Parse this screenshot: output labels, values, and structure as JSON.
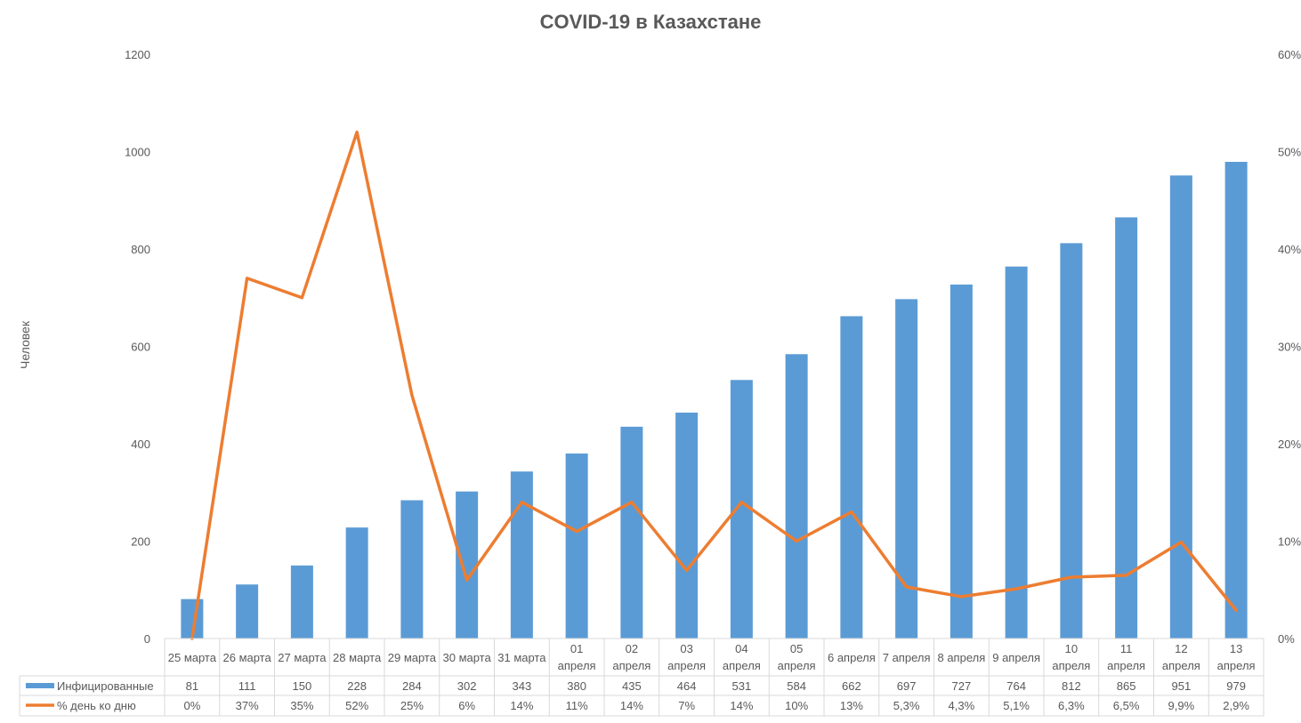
{
  "chart_data": {
    "type": "bar",
    "title": "COVID-19 в Казахстане",
    "ylabel": "Человек",
    "ylim": [
      0,
      1200
    ],
    "y2lim": [
      0,
      0.6
    ],
    "y_ticks": [
      "0",
      "200",
      "400",
      "600",
      "800",
      "1000",
      "1200"
    ],
    "y2_ticks": [
      "0%",
      "10%",
      "20%",
      "30%",
      "40%",
      "50%",
      "60%"
    ],
    "categories": [
      [
        "25 марта"
      ],
      [
        "26 марта"
      ],
      [
        "27 марта"
      ],
      [
        "28 марта"
      ],
      [
        "29 марта"
      ],
      [
        "30 марта"
      ],
      [
        "31 марта"
      ],
      [
        "01",
        "апреля"
      ],
      [
        "02",
        "апреля"
      ],
      [
        "03",
        "апреля"
      ],
      [
        "04",
        "апреля"
      ],
      [
        "05",
        "апреля"
      ],
      [
        "6 апреля"
      ],
      [
        "7 апреля"
      ],
      [
        "8 апреля"
      ],
      [
        "9 апреля"
      ],
      [
        "10",
        "апреля"
      ],
      [
        "11",
        "апреля"
      ],
      [
        "12",
        "апреля"
      ],
      [
        "13",
        "апреля"
      ]
    ],
    "series": [
      {
        "name": "Инфицированные",
        "type": "bar",
        "axis": "left",
        "color": "#5B9BD5",
        "values": [
          81,
          111,
          150,
          228,
          284,
          302,
          343,
          380,
          435,
          464,
          531,
          584,
          662,
          697,
          727,
          764,
          812,
          865,
          951,
          979
        ],
        "labels": [
          "81",
          "111",
          "150",
          "228",
          "284",
          "302",
          "343",
          "380",
          "435",
          "464",
          "531",
          "584",
          "662",
          "697",
          "727",
          "764",
          "812",
          "865",
          "951",
          "979"
        ]
      },
      {
        "name": "% день ко дню",
        "type": "line",
        "axis": "right",
        "color": "#ED7D31",
        "values": [
          0,
          0.37,
          0.35,
          0.52,
          0.25,
          0.06,
          0.14,
          0.11,
          0.14,
          0.07,
          0.14,
          0.1,
          0.13,
          0.053,
          0.043,
          0.051,
          0.063,
          0.065,
          0.099,
          0.029
        ],
        "labels": [
          "0%",
          "37%",
          "35%",
          "52%",
          "25%",
          "6%",
          "14%",
          "11%",
          "14%",
          "7%",
          "14%",
          "10%",
          "13%",
          "5,3%",
          "4,3%",
          "5,1%",
          "6,3%",
          "6,5%",
          "9,9%",
          "2,9%"
        ]
      }
    ],
    "grid": false,
    "legend": "data-table"
  }
}
